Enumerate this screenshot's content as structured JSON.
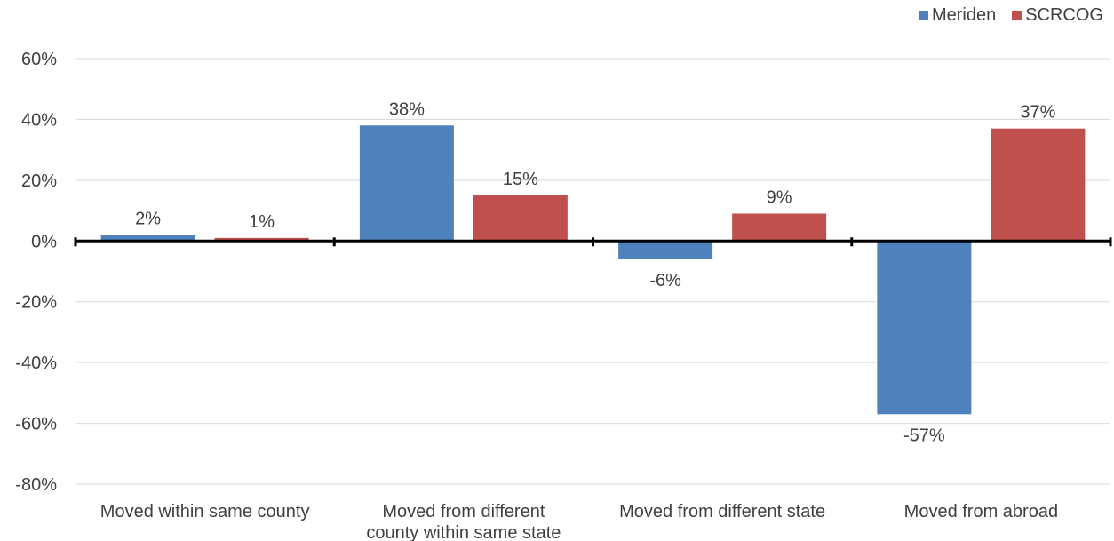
{
  "chart_data": {
    "type": "bar",
    "categories": [
      "Moved within same county",
      "Moved from different county within same state",
      "Moved from different state",
      "Moved from abroad"
    ],
    "category_label_lines": [
      [
        "Moved within same county"
      ],
      [
        "Moved from different",
        "county within same state"
      ],
      [
        "Moved from different state"
      ],
      [
        "Moved from abroad"
      ]
    ],
    "series": [
      {
        "name": "Meriden",
        "color": "#4f81bd",
        "values": [
          2,
          38,
          -6,
          -57
        ],
        "labels": [
          "2%",
          "38%",
          "-6%",
          "-57%"
        ]
      },
      {
        "name": "SCRCOG",
        "color": "#c0504d",
        "values": [
          1,
          15,
          9,
          37
        ],
        "labels": [
          "1%",
          "15%",
          "9%",
          "37%"
        ]
      }
    ],
    "ylim": [
      -80,
      60
    ],
    "yticks": [
      60,
      40,
      20,
      0,
      -20,
      -40,
      -60,
      -80
    ],
    "ytick_labels": [
      "60%",
      "40%",
      "20%",
      "0%",
      "-20%",
      "-40%",
      "-60%",
      "-80%"
    ],
    "grid": true,
    "legend_position": "top-right",
    "title": "",
    "xlabel": "",
    "ylabel": ""
  }
}
